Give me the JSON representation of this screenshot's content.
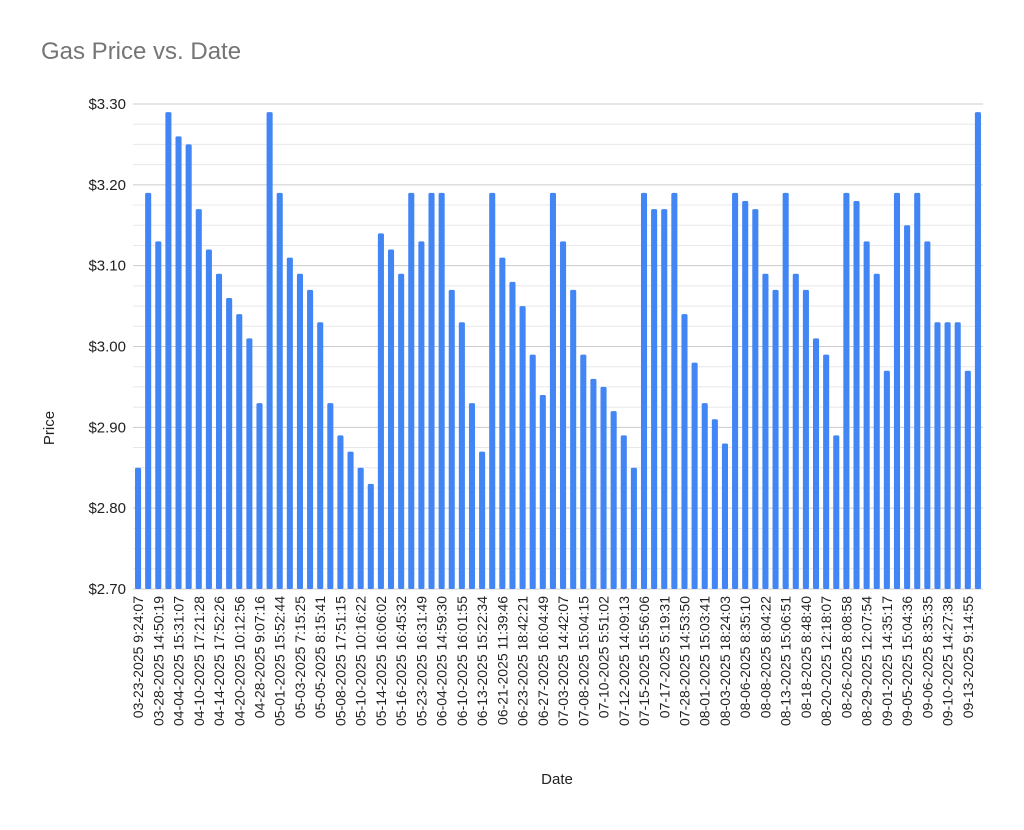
{
  "chart_data": {
    "type": "bar",
    "title": "Gas Price vs. Date",
    "xlabel": "Date",
    "ylabel": "Price",
    "ylim": [
      2.7,
      3.3
    ],
    "yticks": [
      "$2.70",
      "$2.80",
      "$2.90",
      "$3.00",
      "$3.10",
      "$3.20",
      "$3.30"
    ],
    "minor_gridlines": true,
    "bar_color": "#4285f4",
    "grid_color": "#d9d9d9",
    "x_tick_labels": [
      "03-23-2025 9:24:07",
      "03-28-2025 14:50:19",
      "04-04-2025 15:31:07",
      "04-10-2025 17:21:28",
      "04-14-2025 17:52:26",
      "04-20-2025 10:12:56",
      "04-28-2025 9:07:16",
      "05-01-2025 15:52:44",
      "05-03-2025 7:15:25",
      "05-05-2025 8:15:41",
      "05-08-2025 17:51:15",
      "05-10-2025 10:16:22",
      "05-14-2025 16:06:02",
      "05-16-2025 16:45:32",
      "05-23-2025 16:31:49",
      "06-04-2025 14:59:30",
      "06-10-2025 16:01:55",
      "06-13-2025 15:22:34",
      "06-21-2025 11:39:46",
      "06-23-2025 18:42:21",
      "06-27-2025 16:04:49",
      "07-03-2025 14:42:07",
      "07-08-2025 15:04:15",
      "07-10-2025 5:51:02",
      "07-12-2025 14:09:13",
      "07-15-2025 15:56:06",
      "07-17-2025 5:19:31",
      "07-28-2025 14:53:50",
      "08-01-2025 15:03:41",
      "08-03-2025 18:24:03",
      "08-06-2025 8:35:10",
      "08-08-2025 8:04:22",
      "08-13-2025 15:06:51",
      "08-18-2025 8:48:40",
      "08-20-2025 12:18:07",
      "08-26-2025 8:08:58",
      "08-29-2025 12:07:54",
      "09-01-2025 14:35:17",
      "09-05-2025 15:04:36",
      "09-06-2025 8:35:35",
      "09-10-2025 14:27:38",
      "09-13-2025 9:14:55"
    ],
    "values": [
      2.85,
      3.19,
      3.13,
      3.29,
      3.26,
      3.25,
      3.17,
      3.12,
      3.09,
      3.06,
      3.04,
      3.01,
      2.93,
      3.29,
      3.19,
      3.11,
      3.09,
      3.07,
      3.03,
      2.93,
      2.89,
      2.87,
      2.85,
      2.83,
      3.14,
      3.12,
      3.09,
      3.19,
      3.13,
      3.19,
      3.19,
      3.07,
      3.03,
      2.93,
      2.87,
      3.19,
      3.11,
      3.08,
      3.05,
      2.99,
      2.94,
      3.19,
      3.13,
      3.07,
      2.99,
      2.96,
      2.95,
      2.92,
      2.89,
      2.85,
      3.19,
      3.17,
      3.17,
      3.19,
      3.04,
      2.98,
      2.93,
      2.91,
      2.88,
      3.19,
      3.18,
      3.17,
      3.09,
      3.07,
      3.19,
      3.09,
      3.07,
      3.01,
      2.99,
      2.89,
      3.19,
      3.18,
      3.13,
      3.09,
      2.97,
      3.19,
      3.15,
      3.19,
      3.13,
      3.03,
      3.03,
      3.03,
      2.97,
      3.29
    ]
  }
}
